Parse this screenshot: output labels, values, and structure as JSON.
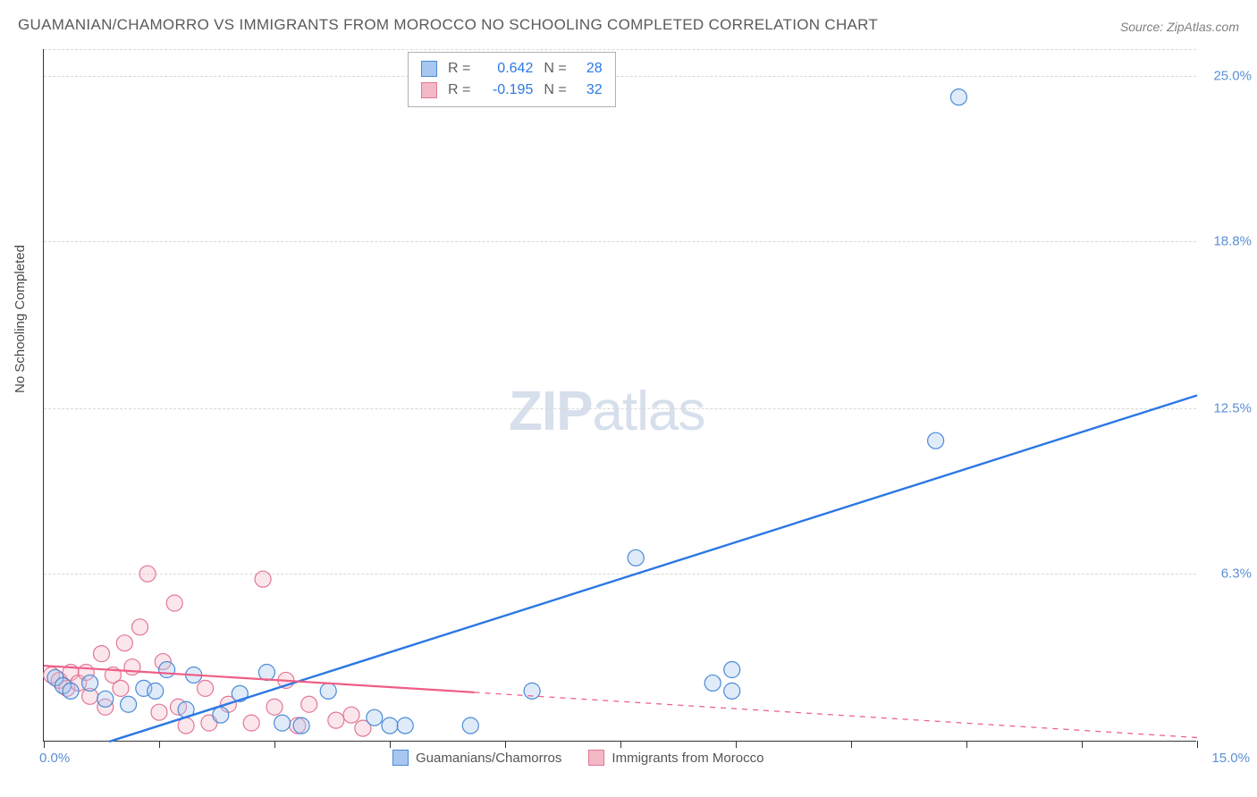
{
  "title": "GUAMANIAN/CHAMORRO VS IMMIGRANTS FROM MOROCCO NO SCHOOLING COMPLETED CORRELATION CHART",
  "source": "Source: ZipAtlas.com",
  "y_axis_label": "No Schooling Completed",
  "watermark_zip": "ZIP",
  "watermark_atlas": "atlas",
  "chart": {
    "type": "scatter",
    "background_color": "#ffffff",
    "grid_color": "#d8d8d8",
    "axis_color": "#333333",
    "xlim": [
      0,
      15
    ],
    "ylim": [
      0,
      26
    ],
    "x_tick_positions": [
      0,
      1.5,
      3,
      4.5,
      6,
      7.5,
      9,
      10.5,
      12,
      13.5,
      15
    ],
    "x_tick_labels": {
      "start": "0.0%",
      "end": "15.0%"
    },
    "y_gridlines": [
      {
        "value": 6.3,
        "label": "6.3%"
      },
      {
        "value": 12.5,
        "label": "12.5%"
      },
      {
        "value": 18.8,
        "label": "18.8%"
      },
      {
        "value": 25.0,
        "label": "25.0%"
      }
    ],
    "tick_label_color": "#5b8fd6",
    "tick_label_fontsize": 15,
    "marker_radius": 9,
    "marker_stroke_width": 1.2,
    "marker_fill_opacity": 0.35,
    "series": [
      {
        "id": "guamanians",
        "legend_label": "Guamanians/Chamorros",
        "R": "0.642",
        "N": "28",
        "fill": "#a7c7f0",
        "stroke": "#4a8ad4",
        "points": [
          [
            0.15,
            2.4
          ],
          [
            0.25,
            2.1
          ],
          [
            0.35,
            1.9
          ],
          [
            0.6,
            2.2
          ],
          [
            0.8,
            1.6
          ],
          [
            1.1,
            1.4
          ],
          [
            1.3,
            2.0
          ],
          [
            1.45,
            1.9
          ],
          [
            1.6,
            2.7
          ],
          [
            1.85,
            1.2
          ],
          [
            1.95,
            2.5
          ],
          [
            2.3,
            1.0
          ],
          [
            2.55,
            1.8
          ],
          [
            2.9,
            2.6
          ],
          [
            3.1,
            0.7
          ],
          [
            3.35,
            0.6
          ],
          [
            3.7,
            1.9
          ],
          [
            4.3,
            0.9
          ],
          [
            4.5,
            0.6
          ],
          [
            4.7,
            0.6
          ],
          [
            5.55,
            0.6
          ],
          [
            6.35,
            1.9
          ],
          [
            7.7,
            6.9
          ],
          [
            8.7,
            2.2
          ],
          [
            8.95,
            2.7
          ],
          [
            8.95,
            1.9
          ],
          [
            11.6,
            11.3
          ],
          [
            11.9,
            24.2
          ]
        ],
        "trend": {
          "solid": {
            "x1": 0.85,
            "y1": 0,
            "x2": 15.0,
            "y2": 13.0
          },
          "color": "#2b78e4",
          "width": 2.4
        }
      },
      {
        "id": "morocco",
        "legend_label": "Immigrants from Morocco",
        "R": "-0.195",
        "N": "32",
        "fill": "#f3b8c5",
        "stroke": "#e37795",
        "points": [
          [
            0.1,
            2.5
          ],
          [
            0.2,
            2.3
          ],
          [
            0.3,
            2.0
          ],
          [
            0.35,
            2.6
          ],
          [
            0.45,
            2.2
          ],
          [
            0.55,
            2.6
          ],
          [
            0.6,
            1.7
          ],
          [
            0.75,
            3.3
          ],
          [
            0.8,
            1.3
          ],
          [
            0.9,
            2.5
          ],
          [
            1.0,
            2.0
          ],
          [
            1.05,
            3.7
          ],
          [
            1.15,
            2.8
          ],
          [
            1.25,
            4.3
          ],
          [
            1.35,
            6.3
          ],
          [
            1.5,
            1.1
          ],
          [
            1.55,
            3.0
          ],
          [
            1.7,
            5.2
          ],
          [
            1.75,
            1.3
          ],
          [
            1.85,
            0.6
          ],
          [
            2.1,
            2.0
          ],
          [
            2.15,
            0.7
          ],
          [
            2.4,
            1.4
          ],
          [
            2.7,
            0.7
          ],
          [
            2.85,
            6.1
          ],
          [
            3.0,
            1.3
          ],
          [
            3.15,
            2.3
          ],
          [
            3.3,
            0.6
          ],
          [
            3.45,
            1.4
          ],
          [
            3.8,
            0.8
          ],
          [
            4.0,
            1.0
          ],
          [
            4.15,
            0.5
          ]
        ],
        "trend": {
          "solid": {
            "x1": 0,
            "y1": 2.85,
            "x2": 5.6,
            "y2": 1.85
          },
          "dashed": {
            "x1": 5.6,
            "y1": 1.85,
            "x2": 15.0,
            "y2": 0.15
          },
          "color": "#ef5d86",
          "width": 2.2
        }
      }
    ],
    "stats_box": {
      "r_label": "R =",
      "n_label": "N =",
      "r_color": "#2b78e4",
      "n_color": "#2b78e4",
      "label_color": "#606060"
    }
  }
}
